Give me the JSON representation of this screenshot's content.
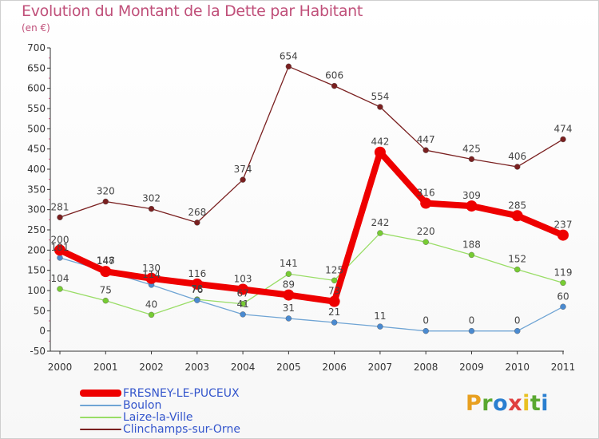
{
  "title": "Evolution du Montant de la Dette par Habitant",
  "unit": "(en €)",
  "logo": {
    "text": "Proxiti",
    "colors": [
      "#e8a020",
      "#5aa830",
      "#2a7fd0",
      "#e04040",
      "#e8c020",
      "#5aa830",
      "#2a7fd0"
    ]
  },
  "chart_data": {
    "type": "line",
    "x": [
      "2000",
      "2001",
      "2002",
      "2003",
      "2004",
      "2005",
      "2006",
      "2007",
      "2008",
      "2009",
      "2010",
      "2011"
    ],
    "yticks": [
      -50,
      0,
      50,
      100,
      150,
      200,
      250,
      300,
      350,
      400,
      450,
      500,
      550,
      600,
      650,
      700
    ],
    "ylim": [
      -50,
      700
    ],
    "grid": false,
    "legend": "bottom-left",
    "series": [
      {
        "name": "Clinchamps-sur-Orne",
        "color": "#7a2020",
        "width": 1.3,
        "marker": 3.5,
        "values": [
          281,
          320,
          302,
          268,
          374,
          654,
          606,
          554,
          447,
          425,
          406,
          474
        ]
      },
      {
        "name": "Laize-la-Ville",
        "color": "#99dd66",
        "marker_color": "#77cc33",
        "width": 1.3,
        "marker": 3.5,
        "values": [
          104,
          75,
          40,
          78,
          67,
          141,
          125,
          242,
          220,
          188,
          152,
          119
        ]
      },
      {
        "name": "Boulon",
        "color": "#6fa4d4",
        "marker_color": "#4a8ad0",
        "width": 1.3,
        "marker": 3.5,
        "values": [
          181,
          148,
          114,
          76,
          41,
          31,
          21,
          11,
          0,
          0,
          0,
          60
        ]
      },
      {
        "name": "FRESNEY-LE-PUCEUX",
        "color": "#ee0000",
        "width": 8,
        "marker": 7,
        "values": [
          200,
          147,
          130,
          116,
          103,
          89,
          73,
          442,
          316,
          309,
          285,
          237
        ]
      }
    ],
    "labels": [
      {
        "series": "FRESNEY-LE-PUCEUX",
        "values": [
          "200",
          "147",
          "130",
          "116",
          "103",
          "89",
          "73",
          "442",
          "316",
          "309",
          "285",
          "237"
        ]
      },
      {
        "series": "Boulon",
        "values": [
          "181",
          "148",
          "114",
          "76",
          "41",
          "31",
          "21",
          "11",
          "0",
          "0",
          "0",
          "60"
        ]
      },
      {
        "series": "Laize-la-Ville",
        "values": [
          "104",
          "75",
          "40",
          "78",
          "67",
          "141",
          "125",
          "242",
          "220",
          "188",
          "152",
          "119"
        ]
      },
      {
        "series": "Clinchamps-sur-Orne",
        "values": [
          "281",
          "320",
          "302",
          "268",
          "374",
          "654",
          "606",
          "554",
          "447",
          "425",
          "406",
          "474"
        ]
      }
    ]
  },
  "legend_items": [
    {
      "name": "FRESNEY-LE-PUCEUX",
      "color": "#ee0000",
      "height": 9,
      "text_color": "#3355cc"
    },
    {
      "name": "Boulon",
      "color": "#6fa4d4",
      "height": 2,
      "text_color": "#3355cc"
    },
    {
      "name": "Laize-la-Ville",
      "color": "#99dd66",
      "height": 2,
      "text_color": "#3355cc"
    },
    {
      "name": "Clinchamps-sur-Orne",
      "color": "#7a2020",
      "height": 2,
      "text_color": "#3355cc"
    }
  ]
}
